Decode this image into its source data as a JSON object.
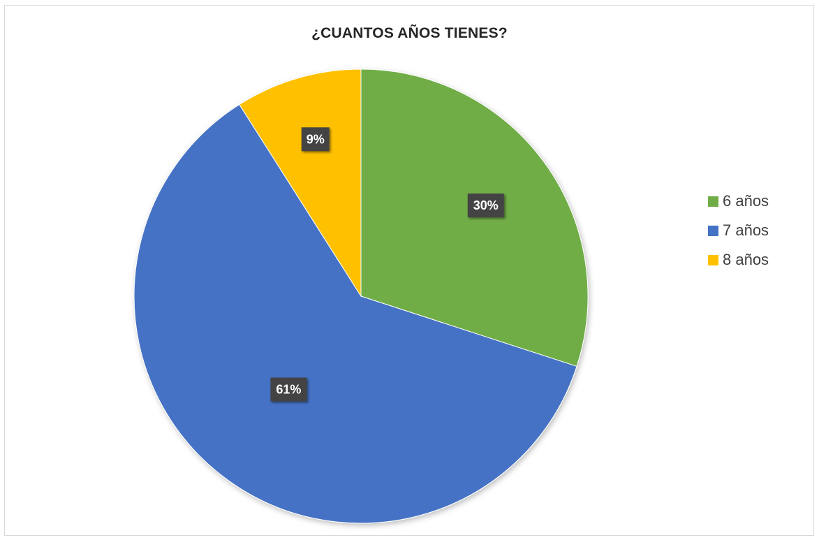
{
  "chart_data": {
    "type": "pie",
    "title": "¿CUANTOS AÑOS TIENES?",
    "categories": [
      "6 años",
      "7 años",
      "8 años"
    ],
    "values": [
      30,
      61,
      9
    ],
    "data_labels": [
      "30%",
      "61%",
      "9%"
    ],
    "colors": [
      "#70ad47",
      "#4472c4",
      "#ffc000"
    ],
    "legend_position": "right"
  }
}
